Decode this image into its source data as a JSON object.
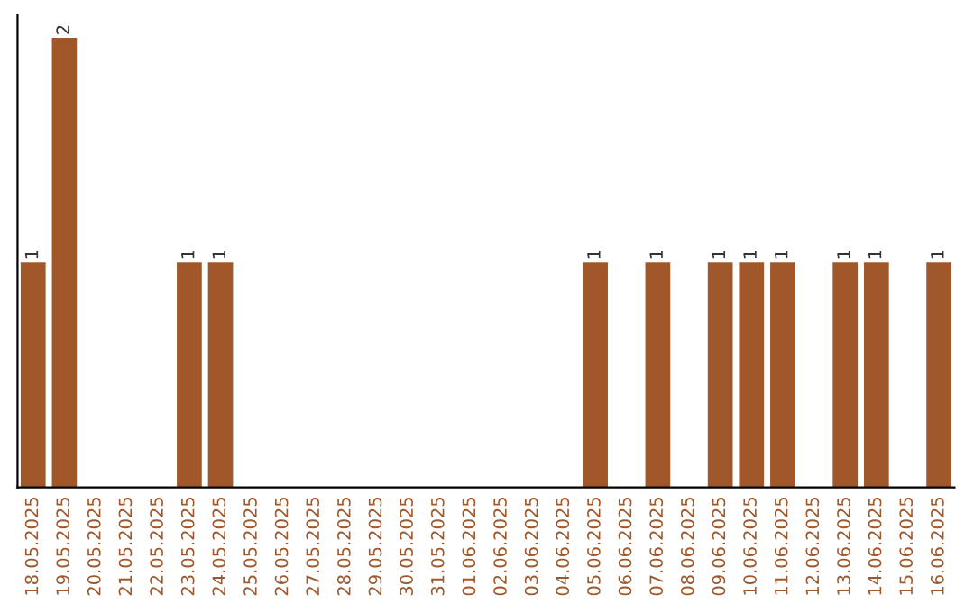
{
  "chart_data": {
    "type": "bar",
    "categories": [
      "18.05.2025",
      "19.05.2025",
      "20.05.2025",
      "21.05.2025",
      "22.05.2025",
      "23.05.2025",
      "24.05.2025",
      "25.05.2025",
      "26.05.2025",
      "27.05.2025",
      "28.05.2025",
      "29.05.2025",
      "30.05.2025",
      "31.05.2025",
      "01.06.2025",
      "02.06.2025",
      "03.06.2025",
      "04.06.2025",
      "05.06.2025",
      "06.06.2025",
      "07.06.2025",
      "08.06.2025",
      "09.06.2025",
      "10.06.2025",
      "11.06.2025",
      "12.06.2025",
      "13.06.2025",
      "14.06.2025",
      "15.06.2025",
      "16.06.2025"
    ],
    "values": [
      1,
      2,
      0,
      0,
      0,
      1,
      1,
      0,
      0,
      0,
      0,
      0,
      0,
      0,
      0,
      0,
      0,
      0,
      1,
      0,
      1,
      0,
      1,
      1,
      1,
      0,
      1,
      1,
      0,
      1
    ],
    "value_labels": [
      "1",
      "2",
      null,
      null,
      null,
      "1",
      "1",
      null,
      null,
      null,
      null,
      null,
      null,
      null,
      null,
      null,
      null,
      null,
      "1",
      null,
      "1",
      null,
      "1",
      "1",
      "1",
      null,
      "1",
      "1",
      null,
      "1"
    ],
    "color": "#a0582a",
    "grid": false,
    "tick_labels": "x"
  }
}
